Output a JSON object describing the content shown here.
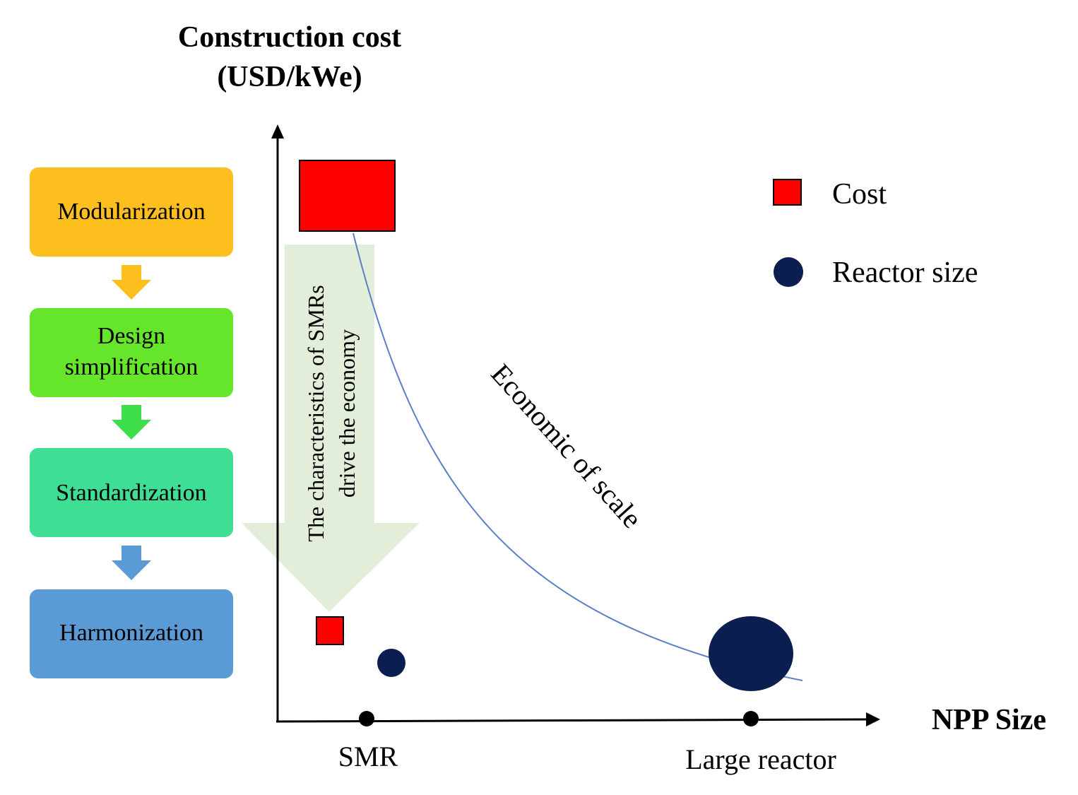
{
  "y_axis": {
    "title_line1": "Construction cost",
    "title_line2": "(USD/kWe)"
  },
  "x_axis": {
    "title": "NPP Size",
    "ticks": [
      "SMR",
      "Large reactor"
    ]
  },
  "steps": [
    {
      "label": "Modularization",
      "color": "#FDBF1E"
    },
    {
      "label_line1": "Design",
      "label_line2": "simplification",
      "color": "#66E62A"
    },
    {
      "label": "Standardization",
      "color": "#3EDF95"
    },
    {
      "label": "Harmonization",
      "color": "#5B9BD5"
    }
  ],
  "step_arrow_colors": [
    "#FDBF1E",
    "#3EDF4A",
    "#5B9BD5"
  ],
  "legend": {
    "cost": "Cost",
    "reactor_size": "Reactor size"
  },
  "curve_label": "Economic of scale",
  "arrow_text": {
    "line1": "The characteristics of SMRs",
    "line2": "drive the economy"
  },
  "colors": {
    "cost": "#FF0000",
    "reactor": "#0A1F4F",
    "curve": "#5B7FC7",
    "big_arrow": "#E3EEDA",
    "axis": "#000000"
  }
}
